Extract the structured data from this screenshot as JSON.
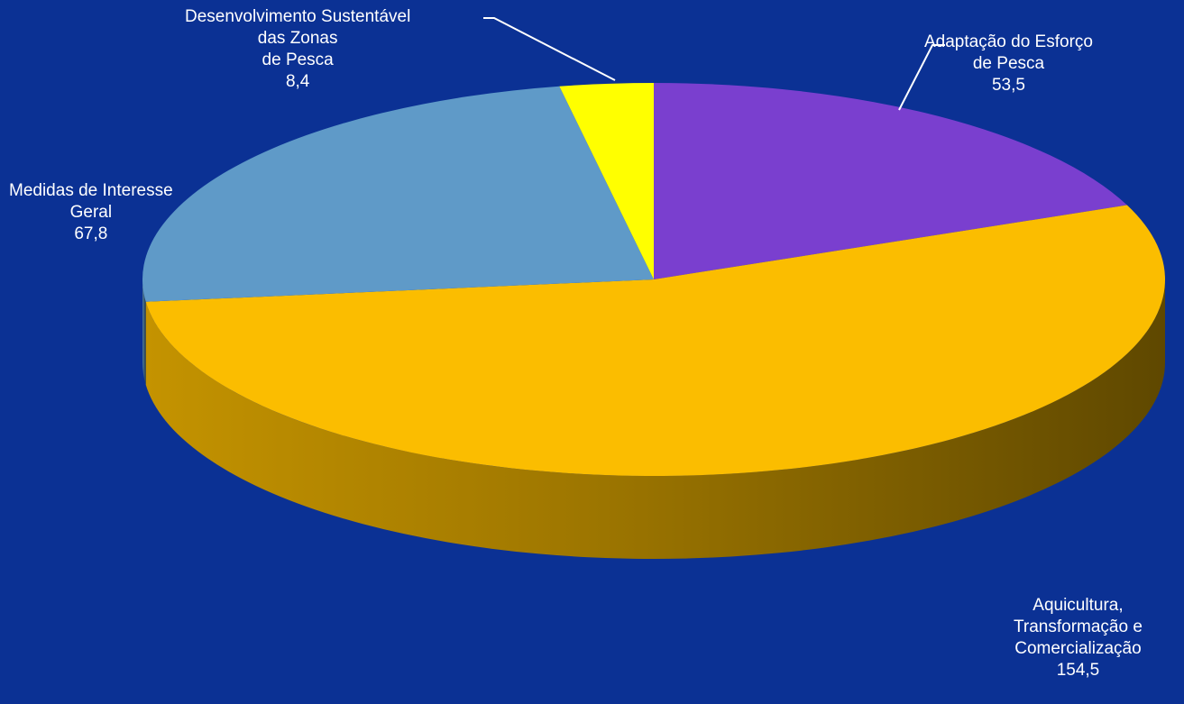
{
  "chart_data": {
    "type": "pie",
    "title": "",
    "slices": [
      {
        "label_lines": [
          "Adaptação do Esforço",
          "de Pesca"
        ],
        "value": 53.5,
        "value_label": "53,5",
        "color": "#7a3fcf"
      },
      {
        "label_lines": [
          "Aquicultura,",
          "Transformação e",
          "Comercialização"
        ],
        "value": 154.5,
        "value_label": "154,5",
        "color": "#fbbd00"
      },
      {
        "label_lines": [
          "Medidas de Interesse",
          "Geral"
        ],
        "value": 67.8,
        "value_label": "67,8",
        "color": "#5f9ac8"
      },
      {
        "label_lines": [
          "Desenvolvimento Sustentável",
          "das Zonas",
          "de Pesca"
        ],
        "value": 8.4,
        "value_label": "8,4",
        "color": "#ffff00"
      }
    ],
    "background_color": "#0b3194",
    "legend": "none",
    "style": "3d"
  }
}
